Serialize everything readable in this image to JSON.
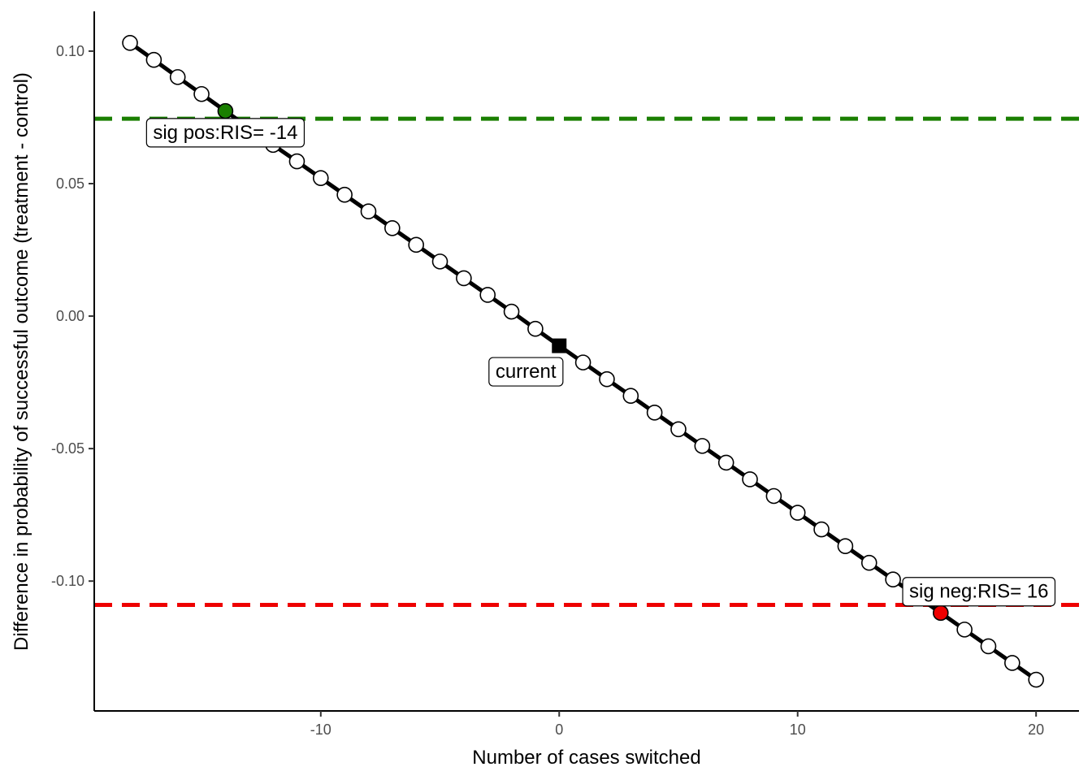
{
  "chart_data": {
    "type": "line",
    "xlabel": "Number of cases switched",
    "ylabel": "Difference in probability of successful outcome (treatment - control)",
    "xlim": [
      -19.5,
      21.8
    ],
    "ylim": [
      -0.149,
      0.115
    ],
    "x_ticks": [
      {
        "value": -10,
        "label": "-10"
      },
      {
        "value": 0,
        "label": "0"
      },
      {
        "value": 10,
        "label": "10"
      },
      {
        "value": 20,
        "label": "20"
      }
    ],
    "y_ticks": [
      {
        "value": 0.1,
        "label": "0.10"
      },
      {
        "value": 0.05,
        "label": "0.05"
      },
      {
        "value": 0.0,
        "label": "0.00"
      },
      {
        "value": -0.05,
        "label": "-0.05"
      },
      {
        "value": -0.1,
        "label": "-0.10"
      }
    ],
    "grid": false,
    "series": [
      {
        "marker": "circle-open",
        "x": [
          -18,
          -17,
          -16,
          -15,
          -14,
          -13,
          -12,
          -11,
          -10,
          -9,
          -8,
          -7,
          -6,
          -5,
          -4,
          -3,
          -2,
          -1,
          0,
          1,
          2,
          3,
          4,
          5,
          6,
          7,
          8,
          9,
          10,
          11,
          12,
          13,
          14,
          15,
          16,
          17,
          18,
          19,
          20
        ],
        "y": [
          0.1031,
          0.0967,
          0.0902,
          0.0838,
          0.0774,
          0.071,
          0.0646,
          0.0584,
          0.0521,
          0.0458,
          0.0395,
          0.0332,
          0.0269,
          0.0206,
          0.0143,
          0.008,
          0.0017,
          -0.0048,
          -0.0112,
          -0.0175,
          -0.0238,
          -0.0301,
          -0.0364,
          -0.0427,
          -0.049,
          -0.0553,
          -0.0616,
          -0.0679,
          -0.0742,
          -0.0805,
          -0.0868,
          -0.0931,
          -0.0994,
          -0.1057,
          -0.112,
          -0.1183,
          -0.1246,
          -0.1309,
          -0.1372
        ]
      }
    ],
    "highlights": [
      {
        "role": "sig-pos",
        "x": -14,
        "y": 0.0774,
        "color": "#1a7f00"
      },
      {
        "role": "current",
        "x": 0,
        "y": -0.0112,
        "color": "#000000"
      },
      {
        "role": "sig-neg",
        "x": 16,
        "y": -0.112,
        "color": "#ee0000"
      }
    ],
    "reference_lines": [
      {
        "y": 0.0745,
        "color": "#1a7f00",
        "style": "dashed"
      },
      {
        "y": -0.109,
        "color": "#ee0000",
        "style": "dashed"
      }
    ],
    "annotations": [
      {
        "text": "sig pos:RIS= -14",
        "x": -14,
        "y": 0.0692,
        "anchor": "middle"
      },
      {
        "text": "current",
        "x": -1.4,
        "y": -0.021,
        "anchor": "middle"
      },
      {
        "text": "sig neg:RIS= 16",
        "x": 17.6,
        "y": -0.104,
        "anchor": "middle"
      }
    ]
  }
}
